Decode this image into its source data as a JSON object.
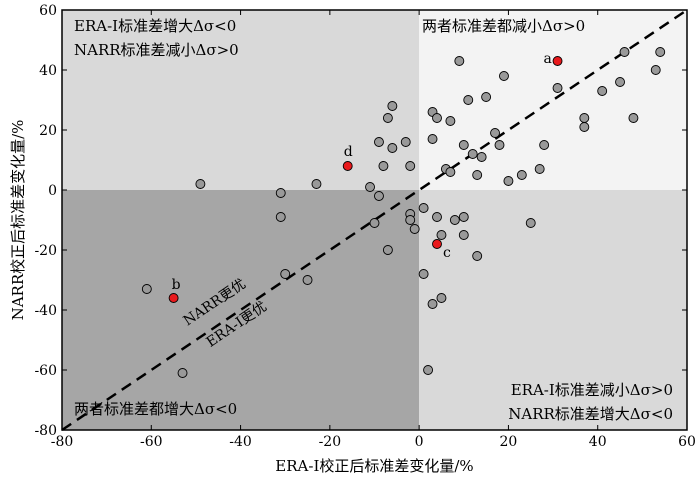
{
  "chart_data": {
    "type": "scatter",
    "xlabel": "ERA-I校正后标准差变化量/%",
    "ylabel": "NARR校正后标准差变化量/%",
    "xlim": [
      -80,
      60
    ],
    "ylim": [
      -80,
      60
    ],
    "xticks": [
      -80,
      -60,
      -40,
      -20,
      0,
      20,
      40,
      60
    ],
    "yticks": [
      -80,
      -60,
      -40,
      -20,
      0,
      20,
      40,
      60
    ],
    "grid": false,
    "quadrant_labels": {
      "top_left": [
        "ERA-I标准差增大Δσ<0",
        "NARR标准差减小Δσ>0"
      ],
      "top_right": [
        "两者标准差都减小Δσ>0"
      ],
      "bottom_left": [
        "两者标准差都增大Δσ<0"
      ],
      "bottom_right": [
        "ERA-I标准差减小Δσ>0",
        "NARR标准差增大Δσ<0"
      ]
    },
    "quadrant_colors": {
      "top_left": "#d9d9d9",
      "top_right": "#f3f3f3",
      "bottom_left": "#a6a6a6",
      "bottom_right": "#d9d9d9"
    },
    "diagonal": {
      "from": [
        -80,
        -80
      ],
      "to": [
        60,
        60
      ],
      "label_above": "NARR更优",
      "label_below": "ERA-I更优"
    },
    "point_color": "#999999",
    "highlight_color": "#e8191c",
    "points": [
      [
        -61,
        -33
      ],
      [
        -49,
        2
      ],
      [
        -53,
        -61
      ],
      [
        -31,
        -1
      ],
      [
        -31,
        -9
      ],
      [
        -30,
        -28
      ],
      [
        -25,
        -30
      ],
      [
        -23,
        2
      ],
      [
        -11,
        1
      ],
      [
        -10,
        -11
      ],
      [
        -9,
        -2
      ],
      [
        -8,
        8
      ],
      [
        -9,
        16
      ],
      [
        -7,
        24
      ],
      [
        -6,
        28
      ],
      [
        -6,
        14
      ],
      [
        -7,
        -20
      ],
      [
        -3,
        16
      ],
      [
        -2,
        8
      ],
      [
        -2,
        -8
      ],
      [
        -2,
        -10
      ],
      [
        -1,
        -13
      ],
      [
        1,
        -6
      ],
      [
        1,
        -28
      ],
      [
        2,
        -60
      ],
      [
        3,
        17
      ],
      [
        3,
        26
      ],
      [
        4,
        24
      ],
      [
        3,
        -38
      ],
      [
        4,
        -9
      ],
      [
        5,
        -15
      ],
      [
        5,
        -36
      ],
      [
        6,
        7
      ],
      [
        7,
        23
      ],
      [
        7,
        6
      ],
      [
        8,
        -10
      ],
      [
        9,
        43
      ],
      [
        10,
        -9
      ],
      [
        10,
        -15
      ],
      [
        10,
        15
      ],
      [
        11,
        30
      ],
      [
        12,
        12
      ],
      [
        13,
        5
      ],
      [
        13,
        -22
      ],
      [
        14,
        11
      ],
      [
        15,
        31
      ],
      [
        17,
        19
      ],
      [
        18,
        15
      ],
      [
        19,
        38
      ],
      [
        20,
        3
      ],
      [
        23,
        5
      ],
      [
        25,
        -11
      ],
      [
        27,
        7
      ],
      [
        28,
        15
      ],
      [
        31,
        34
      ],
      [
        37,
        24
      ],
      [
        37,
        21
      ],
      [
        41,
        33
      ],
      [
        45,
        36
      ],
      [
        46,
        46
      ],
      [
        48,
        24
      ],
      [
        53,
        40
      ],
      [
        54,
        46
      ]
    ],
    "highlighted": [
      {
        "label": "a",
        "x": 31,
        "y": 43
      },
      {
        "label": "b",
        "x": -55,
        "y": -36
      },
      {
        "label": "c",
        "x": 4,
        "y": -18
      },
      {
        "label": "d",
        "x": -16,
        "y": 8
      }
    ]
  }
}
